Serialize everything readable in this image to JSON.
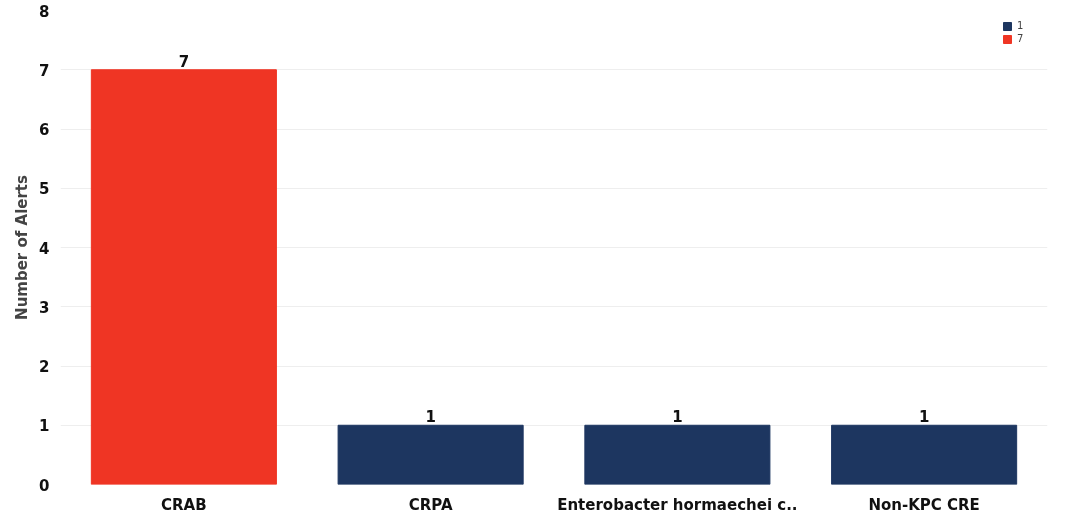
{
  "chart_data": {
    "type": "bar",
    "ylabel": "Number of Alerts",
    "categories": [
      "CRAB",
      "CRPA",
      "Enterobacter hormaechei c..",
      "Non-KPC CRE"
    ],
    "series": [
      {
        "name": "1",
        "color": "#1d3660",
        "values": [
          null,
          1,
          1,
          1
        ]
      },
      {
        "name": "7",
        "color": "#ef3524",
        "values": [
          7,
          null,
          null,
          null
        ]
      }
    ],
    "ylim": [
      0,
      8
    ],
    "yticks": [
      0,
      1,
      2,
      3,
      4,
      5,
      6,
      7,
      8
    ],
    "grid": "y",
    "legend": "top right",
    "data_labels": true
  }
}
